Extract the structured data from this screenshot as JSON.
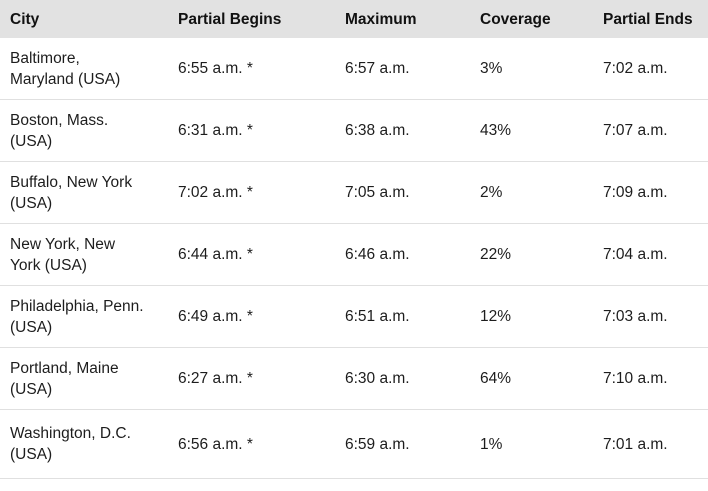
{
  "colors": {
    "header_bg": "#e2e2e2",
    "row_border": "#e0e0e0",
    "text": "#1d1d1d",
    "header_text": "#111111"
  },
  "table": {
    "columns": [
      {
        "label": "City"
      },
      {
        "label": "Partial Begins"
      },
      {
        "label": "Maximum"
      },
      {
        "label": "Coverage"
      },
      {
        "label": "Partial Ends"
      }
    ],
    "rows": [
      {
        "city": "Baltimore,\nMaryland (USA)",
        "partial_begins": "6:55 a.m. *",
        "maximum": "6:57 a.m.",
        "coverage": "3%",
        "partial_ends": "7:02 a.m."
      },
      {
        "city": "Boston, Mass.\n(USA)",
        "partial_begins": "6:31 a.m. *",
        "maximum": "6:38 a.m.",
        "coverage": "43%",
        "partial_ends": "7:07 a.m."
      },
      {
        "city": "Buffalo, New York\n(USA)",
        "partial_begins": "7:02 a.m. *",
        "maximum": "7:05 a.m.",
        "coverage": "2%",
        "partial_ends": "7:09 a.m."
      },
      {
        "city": "New York, New\nYork (USA)",
        "partial_begins": "6:44 a.m. *",
        "maximum": "6:46 a.m.",
        "coverage": "22%",
        "partial_ends": "7:04 a.m."
      },
      {
        "city": "Philadelphia, Penn.\n(USA)",
        "partial_begins": "6:49 a.m. *",
        "maximum": "6:51 a.m.",
        "coverage": "12%",
        "partial_ends": "7:03 a.m."
      },
      {
        "city": "Portland, Maine\n(USA)",
        "partial_begins": "6:27 a.m. *",
        "maximum": "6:30 a.m.",
        "coverage": "64%",
        "partial_ends": "7:10 a.m."
      },
      {
        "city": "Washington, D.C.\n(USA)",
        "partial_begins": "6:56 a.m. *",
        "maximum": "6:59 a.m.",
        "coverage": "1%",
        "partial_ends": "7:01 a.m."
      }
    ]
  }
}
